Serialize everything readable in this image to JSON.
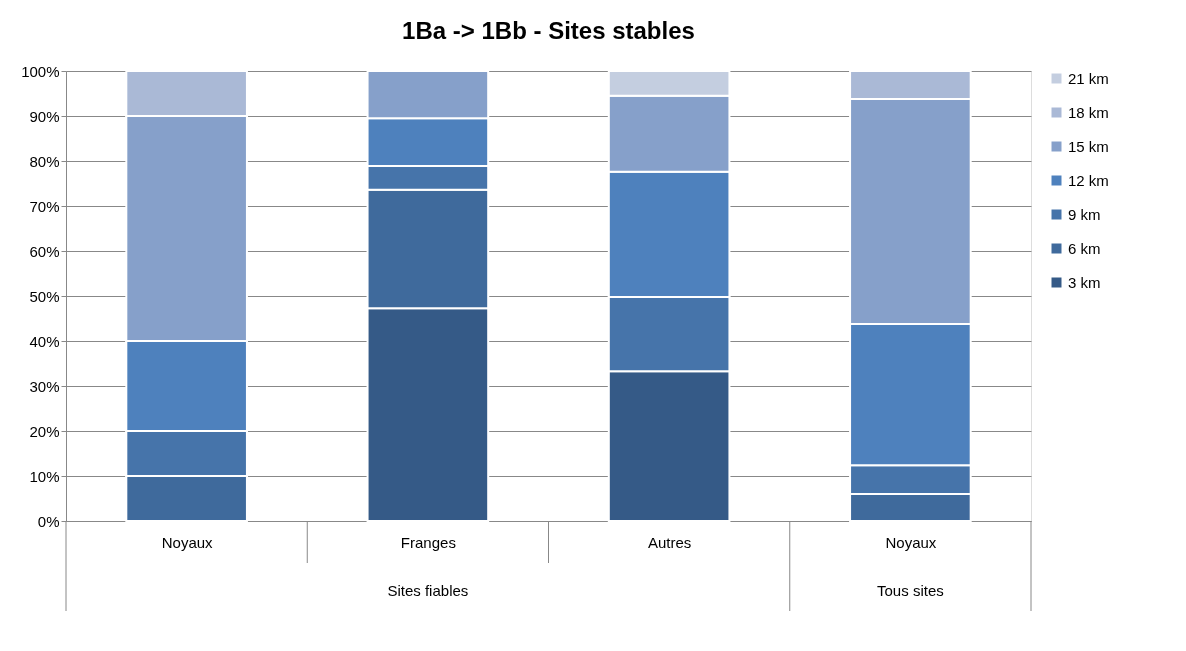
{
  "chart_data": {
    "type": "bar",
    "title": "1Ba -> 1Bb - Sites stables",
    "categories": [
      "Noyaux",
      "Franges",
      "Autres",
      "Noyaux"
    ],
    "stacked": true,
    "series": [
      {
        "name": "3 km",
        "color": "#355a87",
        "values": [
          null,
          47.3,
          33.3,
          null
        ]
      },
      {
        "name": "6 km",
        "color": "#3f6a9c",
        "values": [
          10,
          26.3,
          null,
          6.0
        ]
      },
      {
        "name": "9 km",
        "color": "#4674aa",
        "values": [
          10,
          5.3,
          16.5,
          6.4
        ]
      },
      {
        "name": "12 km",
        "color": "#4e81bd",
        "values": [
          20,
          10.6,
          27.8,
          31.4
        ]
      },
      {
        "name": "15 km",
        "color": "#86a0ca",
        "values": [
          50,
          10.5,
          16.9,
          50
        ]
      },
      {
        "name": "18 km",
        "color": "#aab9d6",
        "values": [
          10,
          null,
          null,
          6.2
        ]
      },
      {
        "name": "21 km",
        "color": "#c4cee0",
        "values": [
          null,
          null,
          5.5,
          null
        ]
      }
    ],
    "ylim": [
      0,
      100
    ],
    "yticks": [
      {
        "value": 0,
        "label": "0%"
      },
      {
        "value": 10,
        "label": "10%"
      },
      {
        "value": 20,
        "label": "20%"
      },
      {
        "value": 30,
        "label": "30%"
      },
      {
        "value": 40,
        "label": "40%"
      },
      {
        "value": 50,
        "label": "50%"
      },
      {
        "value": 60,
        "label": "60%"
      },
      {
        "value": 70,
        "label": "70%"
      },
      {
        "value": 80,
        "label": "80%"
      },
      {
        "value": 90,
        "label": "90%"
      },
      {
        "value": 100,
        "label": "100%"
      }
    ],
    "grid": "y",
    "legend": "right",
    "annotations": [
      "Sites fiables",
      "Tous sites"
    ]
  }
}
